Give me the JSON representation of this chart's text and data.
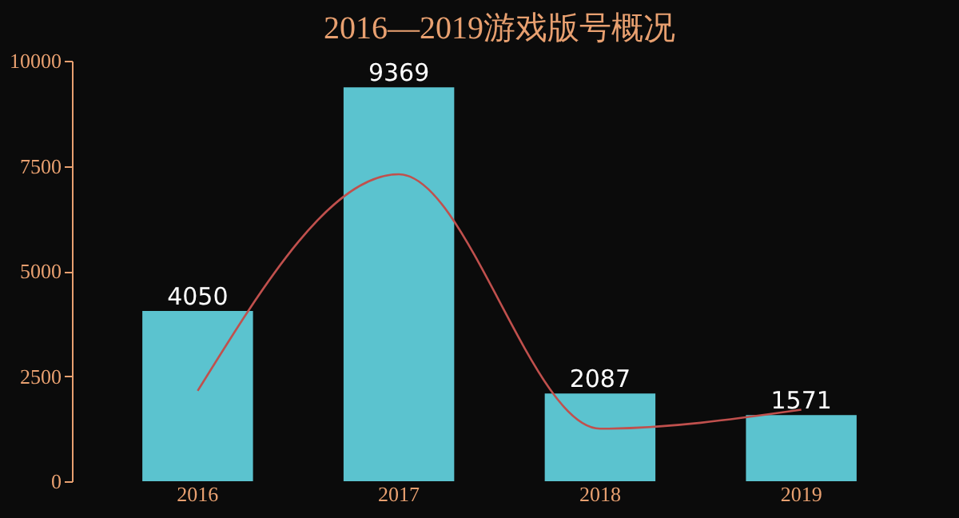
{
  "chart_data": {
    "type": "bar",
    "title": "2016—2019游戏版号概况",
    "categories": [
      "2016",
      "2017",
      "2018",
      "2019"
    ],
    "series": [
      {
        "color": "#5bc3cf",
        "values": [
          4050,
          9369,
          2087,
          1571
        ],
        "value_labels": [
          "4050",
          "9369",
          "2087",
          "1571"
        ]
      },
      {
        "type": "line",
        "color": "#c0504d",
        "values": [
          2150,
          7300,
          1250,
          1700
        ]
      }
    ],
    "ylim": [
      0,
      10000
    ],
    "yticks": [
      0,
      2500,
      5000,
      7500,
      10000
    ],
    "grid": false,
    "marker": "none"
  }
}
